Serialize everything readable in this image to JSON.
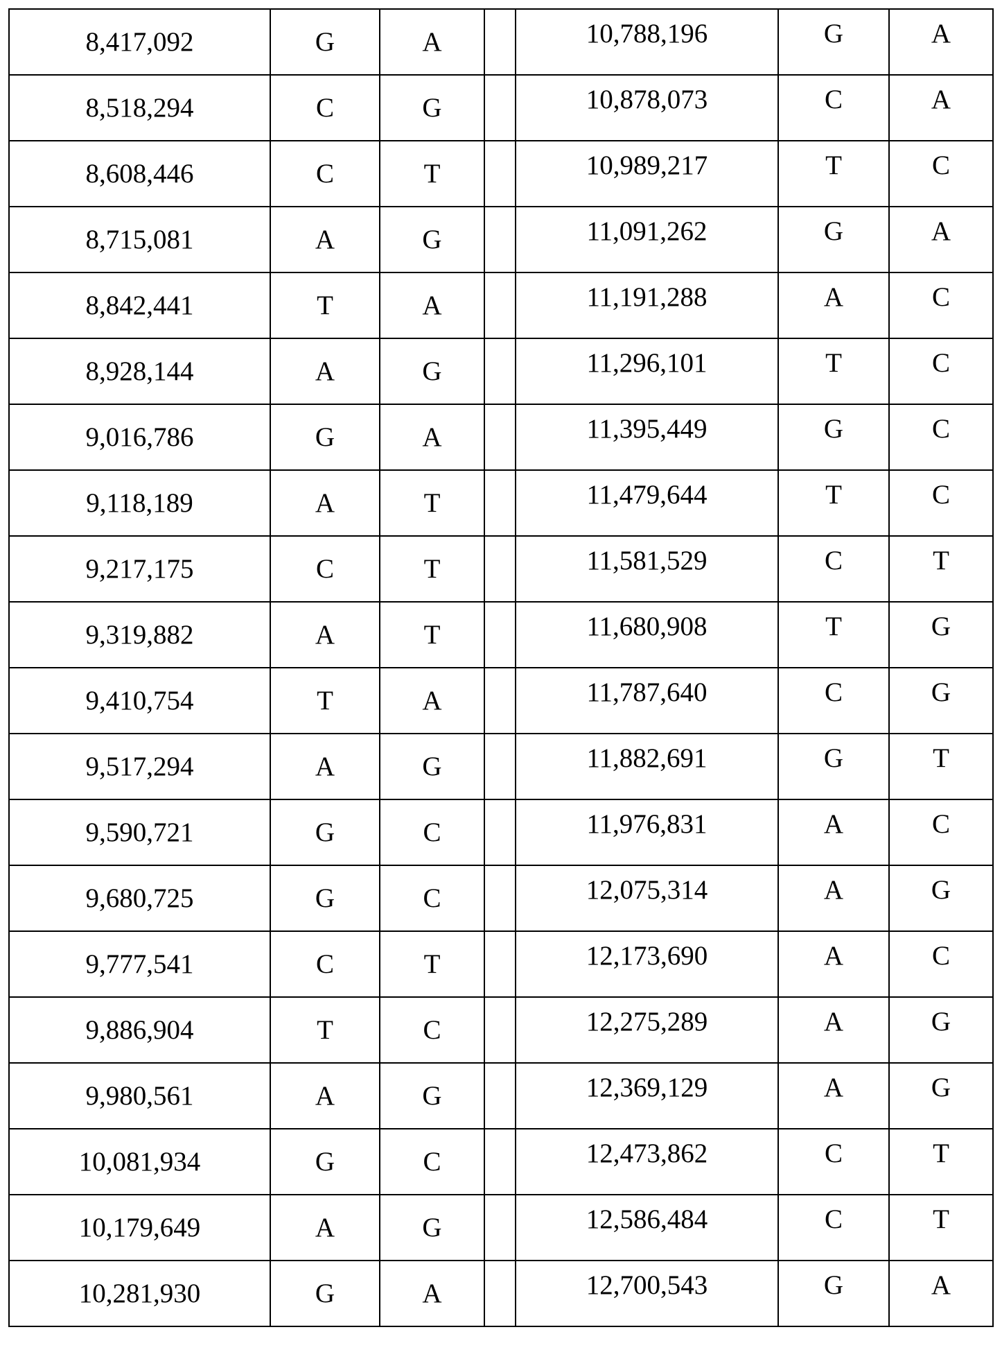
{
  "table": {
    "rows": [
      [
        "8,417,092",
        "G",
        "A",
        "10,788,196",
        "G",
        "A"
      ],
      [
        "8,518,294",
        "C",
        "G",
        "10,878,073",
        "C",
        "A"
      ],
      [
        "8,608,446",
        "C",
        "T",
        "10,989,217",
        "T",
        "C"
      ],
      [
        "8,715,081",
        "A",
        "G",
        "11,091,262",
        "G",
        "A"
      ],
      [
        "8,842,441",
        "T",
        "A",
        "11,191,288",
        "A",
        "C"
      ],
      [
        "8,928,144",
        "A",
        "G",
        "11,296,101",
        "T",
        "C"
      ],
      [
        "9,016,786",
        "G",
        "A",
        "11,395,449",
        "G",
        "C"
      ],
      [
        "9,118,189",
        "A",
        "T",
        "11,479,644",
        "T",
        "C"
      ],
      [
        "9,217,175",
        "C",
        "T",
        "11,581,529",
        "C",
        "T"
      ],
      [
        "9,319,882",
        "A",
        "T",
        "11,680,908",
        "T",
        "G"
      ],
      [
        "9,410,754",
        "T",
        "A",
        "11,787,640",
        "C",
        "G"
      ],
      [
        "9,517,294",
        "A",
        "G",
        "11,882,691",
        "G",
        "T"
      ],
      [
        "9,590,721",
        "G",
        "C",
        "11,976,831",
        "A",
        "C"
      ],
      [
        "9,680,725",
        "G",
        "C",
        "12,075,314",
        "A",
        "G"
      ],
      [
        "9,777,541",
        "C",
        "T",
        "12,173,690",
        "A",
        "C"
      ],
      [
        "9,886,904",
        "T",
        "C",
        "12,275,289",
        "A",
        "G"
      ],
      [
        "9,980,561",
        "A",
        "G",
        "12,369,129",
        "A",
        "G"
      ],
      [
        "10,081,934",
        "G",
        "C",
        "12,473,862",
        "C",
        "T"
      ],
      [
        "10,179,649",
        "A",
        "G",
        "12,586,484",
        "C",
        "T"
      ],
      [
        "10,281,930",
        "G",
        "A",
        "12,700,543",
        "G",
        "A"
      ]
    ]
  }
}
